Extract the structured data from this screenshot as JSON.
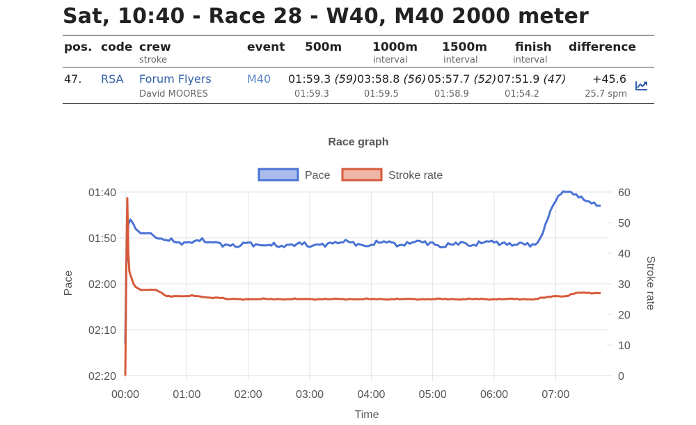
{
  "header": {
    "title": "Sat, 10:40 - Race 28 - W40, M40 2000 meter"
  },
  "table": {
    "columns": {
      "pos": "pos.",
      "code": "code",
      "crew": "crew",
      "crew_sub": "stroke",
      "event": "event",
      "m500": "500m",
      "m1000": "1000m",
      "m1000_sub": "interval",
      "m1500": "1500m",
      "m1500_sub": "interval",
      "finish": "finish",
      "finish_sub": "interval",
      "difference": "difference"
    },
    "row": {
      "pos": "47.",
      "code": "RSA",
      "crew": "Forum Flyers",
      "stroke": "David MOORES",
      "event": "M40",
      "m500": "01:59.3",
      "m500_rank": "(59)",
      "m500_int": "01:59.3",
      "m1000": "03:58.8",
      "m1000_rank": "(56)",
      "m1000_int": "01:59.5",
      "m1500": "05:57.7",
      "m1500_rank": "(52)",
      "m1500_int": "01:58.9",
      "finish": "07:51.9",
      "finish_rank": "(47)",
      "finish_int": "01:54.2",
      "difference": "+45.6",
      "spm": "25.7 spm"
    },
    "trend_icon": "trending-up-icon"
  },
  "chart_data": {
    "type": "line",
    "title": "Race graph",
    "xlabel": "Time",
    "ylabel_left": "Pace",
    "ylabel_right": "Stroke rate",
    "legend_position": "top",
    "grid": true,
    "x_ticks": [
      "00:00",
      "01:00",
      "02:00",
      "03:00",
      "04:00",
      "05:00",
      "06:00",
      "07:00"
    ],
    "x_unit": "seconds",
    "xlim": [
      0,
      470
    ],
    "y_left_ticks": [
      "01:40",
      "01:50",
      "02:00",
      "02:10",
      "02:20"
    ],
    "y_left_unit": "seconds per 500m",
    "y_left_lim": [
      100,
      140
    ],
    "y_right_ticks": [
      "60",
      "50",
      "40",
      "30",
      "20",
      "10",
      "0"
    ],
    "y_right_lim": [
      0,
      60
    ],
    "series": [
      {
        "name": "Pace",
        "color": "#4a73d4",
        "axis": "left",
        "x": [
          0,
          1,
          2,
          3,
          5,
          8,
          10,
          15,
          20,
          25,
          30,
          40,
          50,
          60,
          70,
          80,
          90,
          100,
          110,
          120,
          130,
          140,
          150,
          160,
          170,
          180,
          190,
          200,
          210,
          220,
          230,
          240,
          250,
          260,
          270,
          280,
          290,
          300,
          310,
          320,
          330,
          340,
          350,
          360,
          370,
          380,
          390,
          400,
          405,
          410,
          415,
          420,
          425,
          430,
          435,
          440,
          445,
          450,
          455,
          460,
          464
        ],
        "values": [
          133,
          116,
          112,
          107,
          106,
          107,
          108,
          109,
          109,
          109,
          110,
          110.5,
          111,
          111,
          110.5,
          111,
          111,
          111.5,
          112,
          111,
          111.5,
          111.5,
          112,
          111.5,
          111,
          112,
          111.5,
          111,
          111,
          111,
          111.5,
          111.5,
          111,
          111,
          111.5,
          111,
          111,
          111,
          112,
          111.5,
          111,
          111.5,
          111,
          111,
          111,
          111.5,
          111.5,
          111.5,
          110,
          107,
          104,
          102,
          100.5,
          100,
          100,
          100.5,
          101,
          102,
          102.5,
          103,
          103
        ]
      },
      {
        "name": "Stroke rate",
        "color": "#d65a3b",
        "axis": "right",
        "x": [
          0,
          1,
          2,
          3,
          4,
          6,
          8,
          10,
          15,
          20,
          30,
          40,
          50,
          60,
          70,
          80,
          90,
          100,
          110,
          120,
          130,
          140,
          150,
          160,
          170,
          180,
          190,
          200,
          210,
          220,
          230,
          240,
          250,
          260,
          270,
          280,
          290,
          300,
          310,
          320,
          330,
          340,
          350,
          360,
          370,
          380,
          390,
          400,
          410,
          420,
          430,
          440,
          450,
          460,
          464
        ],
        "values": [
          0,
          35,
          58,
          40,
          34,
          32,
          30,
          29,
          28,
          28,
          28,
          26,
          26,
          26,
          26,
          25.5,
          25.5,
          25,
          25,
          25,
          25,
          25,
          25,
          25,
          25,
          25,
          25,
          25,
          25,
          25,
          25,
          25,
          25,
          25,
          25,
          25,
          25,
          25,
          25,
          25,
          25,
          25,
          25,
          25,
          25,
          25,
          25,
          25,
          25.5,
          26,
          26,
          27,
          27,
          27,
          27
        ]
      }
    ]
  }
}
